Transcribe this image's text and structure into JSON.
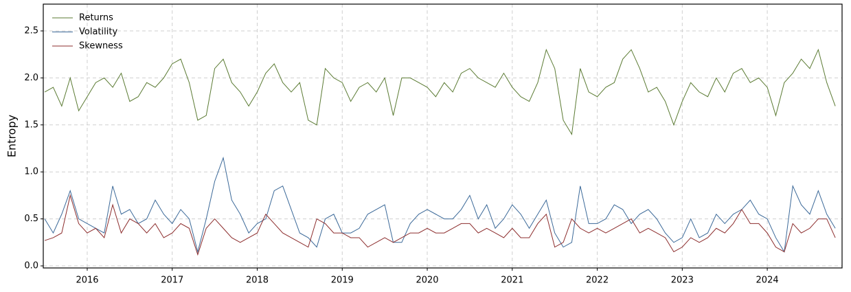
{
  "chart_data": {
    "type": "line",
    "y_label": "Entropy",
    "x": [
      2015.5,
      2015.6,
      2015.7,
      2015.8,
      2015.9,
      2016.0,
      2016.1,
      2016.2,
      2016.3,
      2016.4,
      2016.5,
      2016.6,
      2016.7,
      2016.8,
      2016.9,
      2017.0,
      2017.1,
      2017.2,
      2017.3,
      2017.4,
      2017.5,
      2017.6,
      2017.7,
      2017.8,
      2017.9,
      2018.0,
      2018.1,
      2018.2,
      2018.3,
      2018.4,
      2018.5,
      2018.6,
      2018.7,
      2018.8,
      2018.9,
      2019.0,
      2019.1,
      2019.2,
      2019.3,
      2019.4,
      2019.5,
      2019.6,
      2019.7,
      2019.8,
      2019.9,
      2020.0,
      2020.1,
      2020.2,
      2020.3,
      2020.4,
      2020.5,
      2020.6,
      2020.7,
      2020.8,
      2020.9,
      2021.0,
      2021.1,
      2021.2,
      2021.3,
      2021.4,
      2021.5,
      2021.6,
      2021.7,
      2021.8,
      2021.9,
      2022.0,
      2022.1,
      2022.2,
      2022.3,
      2022.4,
      2022.5,
      2022.6,
      2022.7,
      2022.8,
      2022.9,
      2023.0,
      2023.1,
      2023.2,
      2023.3,
      2023.4,
      2023.5,
      2023.6,
      2023.7,
      2023.8,
      2023.9,
      2024.0,
      2024.1,
      2024.2,
      2024.3,
      2024.4,
      2024.5,
      2024.6,
      2024.7,
      2024.8
    ],
    "series": [
      {
        "name": "Returns",
        "color": "#5a7a32",
        "values": [
          1.85,
          1.9,
          1.7,
          2.0,
          1.65,
          1.8,
          1.95,
          2.0,
          1.9,
          2.05,
          1.75,
          1.8,
          1.95,
          1.9,
          2.0,
          2.15,
          2.2,
          1.95,
          1.55,
          1.6,
          2.1,
          2.2,
          1.95,
          1.85,
          1.7,
          1.85,
          2.05,
          2.15,
          1.95,
          1.85,
          1.95,
          1.55,
          1.5,
          2.1,
          2.0,
          1.95,
          1.75,
          1.9,
          1.95,
          1.85,
          2.0,
          1.6,
          2.0,
          2.0,
          1.95,
          1.9,
          1.8,
          1.95,
          1.85,
          2.05,
          2.1,
          2.0,
          1.95,
          1.9,
          2.05,
          1.9,
          1.8,
          1.75,
          1.95,
          2.3,
          2.1,
          1.55,
          1.4,
          2.1,
          1.85,
          1.8,
          1.9,
          1.95,
          2.2,
          2.3,
          2.1,
          1.85,
          1.9,
          1.75,
          1.5,
          1.75,
          1.95,
          1.85,
          1.8,
          2.0,
          1.85,
          2.05,
          2.1,
          1.95,
          2.0,
          1.9,
          1.6,
          1.95,
          2.05,
          2.2,
          2.1,
          2.3,
          1.95,
          1.7
        ]
      },
      {
        "name": "Volatility",
        "color": "#3a6898",
        "values": [
          0.5,
          0.35,
          0.55,
          0.8,
          0.5,
          0.45,
          0.4,
          0.35,
          0.85,
          0.55,
          0.6,
          0.45,
          0.5,
          0.7,
          0.55,
          0.45,
          0.6,
          0.5,
          0.15,
          0.5,
          0.9,
          1.15,
          0.7,
          0.55,
          0.35,
          0.45,
          0.5,
          0.8,
          0.85,
          0.6,
          0.35,
          0.3,
          0.2,
          0.5,
          0.55,
          0.35,
          0.35,
          0.4,
          0.55,
          0.6,
          0.65,
          0.25,
          0.25,
          0.45,
          0.55,
          0.6,
          0.55,
          0.5,
          0.5,
          0.6,
          0.75,
          0.5,
          0.65,
          0.4,
          0.5,
          0.65,
          0.55,
          0.4,
          0.55,
          0.7,
          0.35,
          0.2,
          0.25,
          0.85,
          0.45,
          0.45,
          0.5,
          0.65,
          0.6,
          0.45,
          0.55,
          0.6,
          0.5,
          0.35,
          0.25,
          0.3,
          0.5,
          0.3,
          0.35,
          0.55,
          0.45,
          0.55,
          0.6,
          0.7,
          0.55,
          0.5,
          0.3,
          0.15,
          0.85,
          0.65,
          0.55,
          0.8,
          0.55,
          0.4
        ]
      },
      {
        "name": "Skewness",
        "color": "#8c2c2c",
        "values": [
          0.27,
          0.3,
          0.35,
          0.75,
          0.45,
          0.35,
          0.4,
          0.3,
          0.65,
          0.35,
          0.5,
          0.45,
          0.35,
          0.45,
          0.3,
          0.35,
          0.45,
          0.4,
          0.12,
          0.4,
          0.5,
          0.4,
          0.3,
          0.25,
          0.3,
          0.35,
          0.55,
          0.45,
          0.35,
          0.3,
          0.25,
          0.2,
          0.5,
          0.45,
          0.35,
          0.35,
          0.3,
          0.3,
          0.2,
          0.25,
          0.3,
          0.25,
          0.3,
          0.35,
          0.35,
          0.4,
          0.35,
          0.35,
          0.4,
          0.45,
          0.45,
          0.35,
          0.4,
          0.35,
          0.3,
          0.4,
          0.3,
          0.3,
          0.45,
          0.55,
          0.2,
          0.25,
          0.5,
          0.4,
          0.35,
          0.4,
          0.35,
          0.4,
          0.45,
          0.5,
          0.35,
          0.4,
          0.35,
          0.3,
          0.15,
          0.2,
          0.3,
          0.25,
          0.3,
          0.4,
          0.35,
          0.45,
          0.6,
          0.45,
          0.45,
          0.35,
          0.2,
          0.15,
          0.45,
          0.35,
          0.4,
          0.5,
          0.5,
          0.3
        ]
      }
    ],
    "xlim": [
      2015.483,
      2024.88
    ],
    "xticks": [
      2016,
      2017,
      2018,
      2019,
      2020,
      2021,
      2022,
      2023,
      2024
    ],
    "ylim": [
      -0.022,
      2.785
    ],
    "yticks": [
      {
        "value": 0,
        "label": "0.0"
      },
      0.5,
      {
        "value": 1,
        "label": "1.0"
      },
      1.5,
      {
        "value": 2,
        "label": "2.0"
      },
      2.5
    ],
    "grid": true,
    "legend": "upper-left"
  }
}
